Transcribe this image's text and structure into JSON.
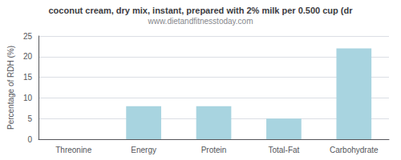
{
  "chart_data": {
    "type": "bar",
    "title": "coconut cream, dry mix, instant, prepared with 2% milk per 0.500 cup (dr",
    "subtitle": "www.dietandfitnesstoday.com",
    "categories": [
      "Threonine",
      "Energy",
      "Protein",
      "Total-Fat",
      "Carbohydrate"
    ],
    "values": [
      0,
      8,
      8,
      5,
      22
    ],
    "color": "#a8d4e0",
    "ylabel": "Percentage of RDH (%)",
    "ylim": [
      0,
      25
    ],
    "yticks": [
      0,
      5,
      10,
      15,
      20,
      25
    ],
    "grid": true
  }
}
